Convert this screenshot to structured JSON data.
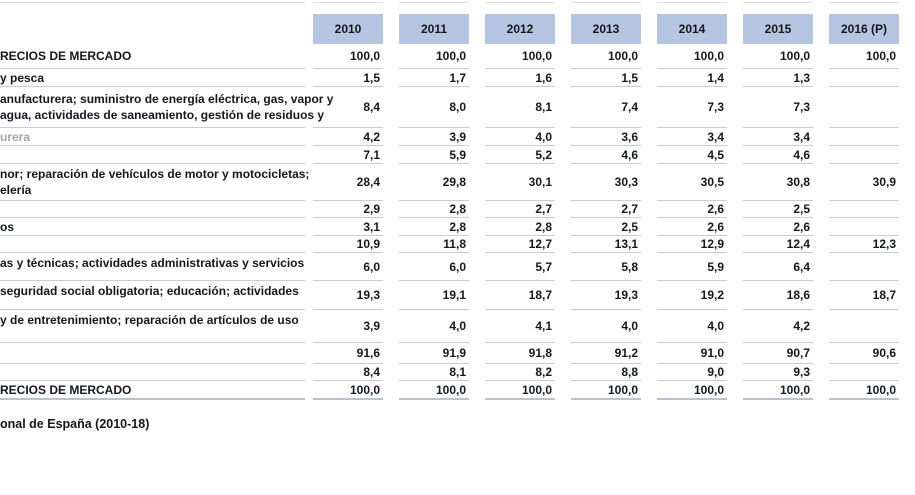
{
  "colors": {
    "header_bg": "#b6c5e1",
    "grid_line": "#c6cdd8",
    "strong_line": "#b9c2d3",
    "faint_line": "#dadee6",
    "text": "#15171d",
    "muted_label": "#a6a6a6"
  },
  "chart_data": {
    "type": "table",
    "columns": [
      "2010",
      "2011",
      "2012",
      "2013",
      "2014",
      "2015",
      "2016 (P)"
    ],
    "rows": [
      {
        "label_lines": [
          "RECIOS DE MERCADO"
        ],
        "muted": false,
        "values": [
          "100,0",
          "100,0",
          "100,0",
          "100,0",
          "100,0",
          "100,0",
          "100,0"
        ]
      },
      {
        "label_lines": [
          "y pesca"
        ],
        "muted": false,
        "values": [
          "1,5",
          "1,7",
          "1,6",
          "1,5",
          "1,4",
          "1,3",
          ""
        ]
      },
      {
        "label_lines": [
          "anufacturera; suministro de energía eléctrica, gas, vapor y",
          "agua, actividades de saneamiento, gestión de residuos y"
        ],
        "muted": false,
        "values": [
          "8,4",
          "8,0",
          "8,1",
          "7,4",
          "7,3",
          "7,3",
          ""
        ]
      },
      {
        "label_lines": [
          "urera"
        ],
        "muted": true,
        "values": [
          "4,2",
          "3,9",
          "4,0",
          "3,6",
          "3,4",
          "3,4",
          ""
        ]
      },
      {
        "label_lines": [
          ""
        ],
        "muted": false,
        "values": [
          "7,1",
          "5,9",
          "5,2",
          "4,6",
          "4,5",
          "4,6",
          ""
        ]
      },
      {
        "label_lines": [
          "nor; reparación de vehículos de motor y motocicletas;",
          "elería"
        ],
        "muted": false,
        "values": [
          "28,4",
          "29,8",
          "30,1",
          "30,3",
          "30,5",
          "30,8",
          "30,9"
        ]
      },
      {
        "label_lines": [
          ""
        ],
        "muted": false,
        "values": [
          "2,9",
          "2,8",
          "2,7",
          "2,7",
          "2,6",
          "2,5",
          ""
        ]
      },
      {
        "label_lines": [
          "os"
        ],
        "muted": false,
        "values": [
          "3,1",
          "2,8",
          "2,8",
          "2,5",
          "2,6",
          "2,6",
          ""
        ]
      },
      {
        "label_lines": [
          ""
        ],
        "muted": false,
        "values": [
          "10,9",
          "11,8",
          "12,7",
          "13,1",
          "12,9",
          "12,4",
          "12,3"
        ]
      },
      {
        "label_lines": [
          "as y técnicas; actividades administrativas y servicios"
        ],
        "muted": false,
        "values": [
          "6,0",
          "6,0",
          "5,7",
          "5,8",
          "5,9",
          "6,4",
          ""
        ]
      },
      {
        "label_lines": [
          "seguridad social obligatoria; educación; actividades"
        ],
        "muted": false,
        "values": [
          "19,3",
          "19,1",
          "18,7",
          "19,3",
          "19,2",
          "18,6",
          "18,7"
        ]
      },
      {
        "label_lines": [
          "y de entretenimiento; reparación de artículos de uso"
        ],
        "muted": false,
        "values": [
          "3,9",
          "4,0",
          "4,1",
          "4,0",
          "4,0",
          "4,2",
          ""
        ]
      },
      {
        "label_lines": [
          ""
        ],
        "muted": false,
        "values": [
          "91,6",
          "91,9",
          "91,8",
          "91,2",
          "91,0",
          "90,7",
          "90,6"
        ]
      },
      {
        "label_lines": [
          ""
        ],
        "muted": false,
        "values": [
          "8,4",
          "8,1",
          "8,2",
          "8,8",
          "9,0",
          "9,3",
          ""
        ]
      },
      {
        "label_lines": [
          "RECIOS DE MERCADO"
        ],
        "muted": false,
        "values": [
          "100,0",
          "100,0",
          "100,0",
          "100,0",
          "100,0",
          "100,0",
          "100,0"
        ]
      }
    ],
    "source_note": "onal de España (2010-18)"
  }
}
